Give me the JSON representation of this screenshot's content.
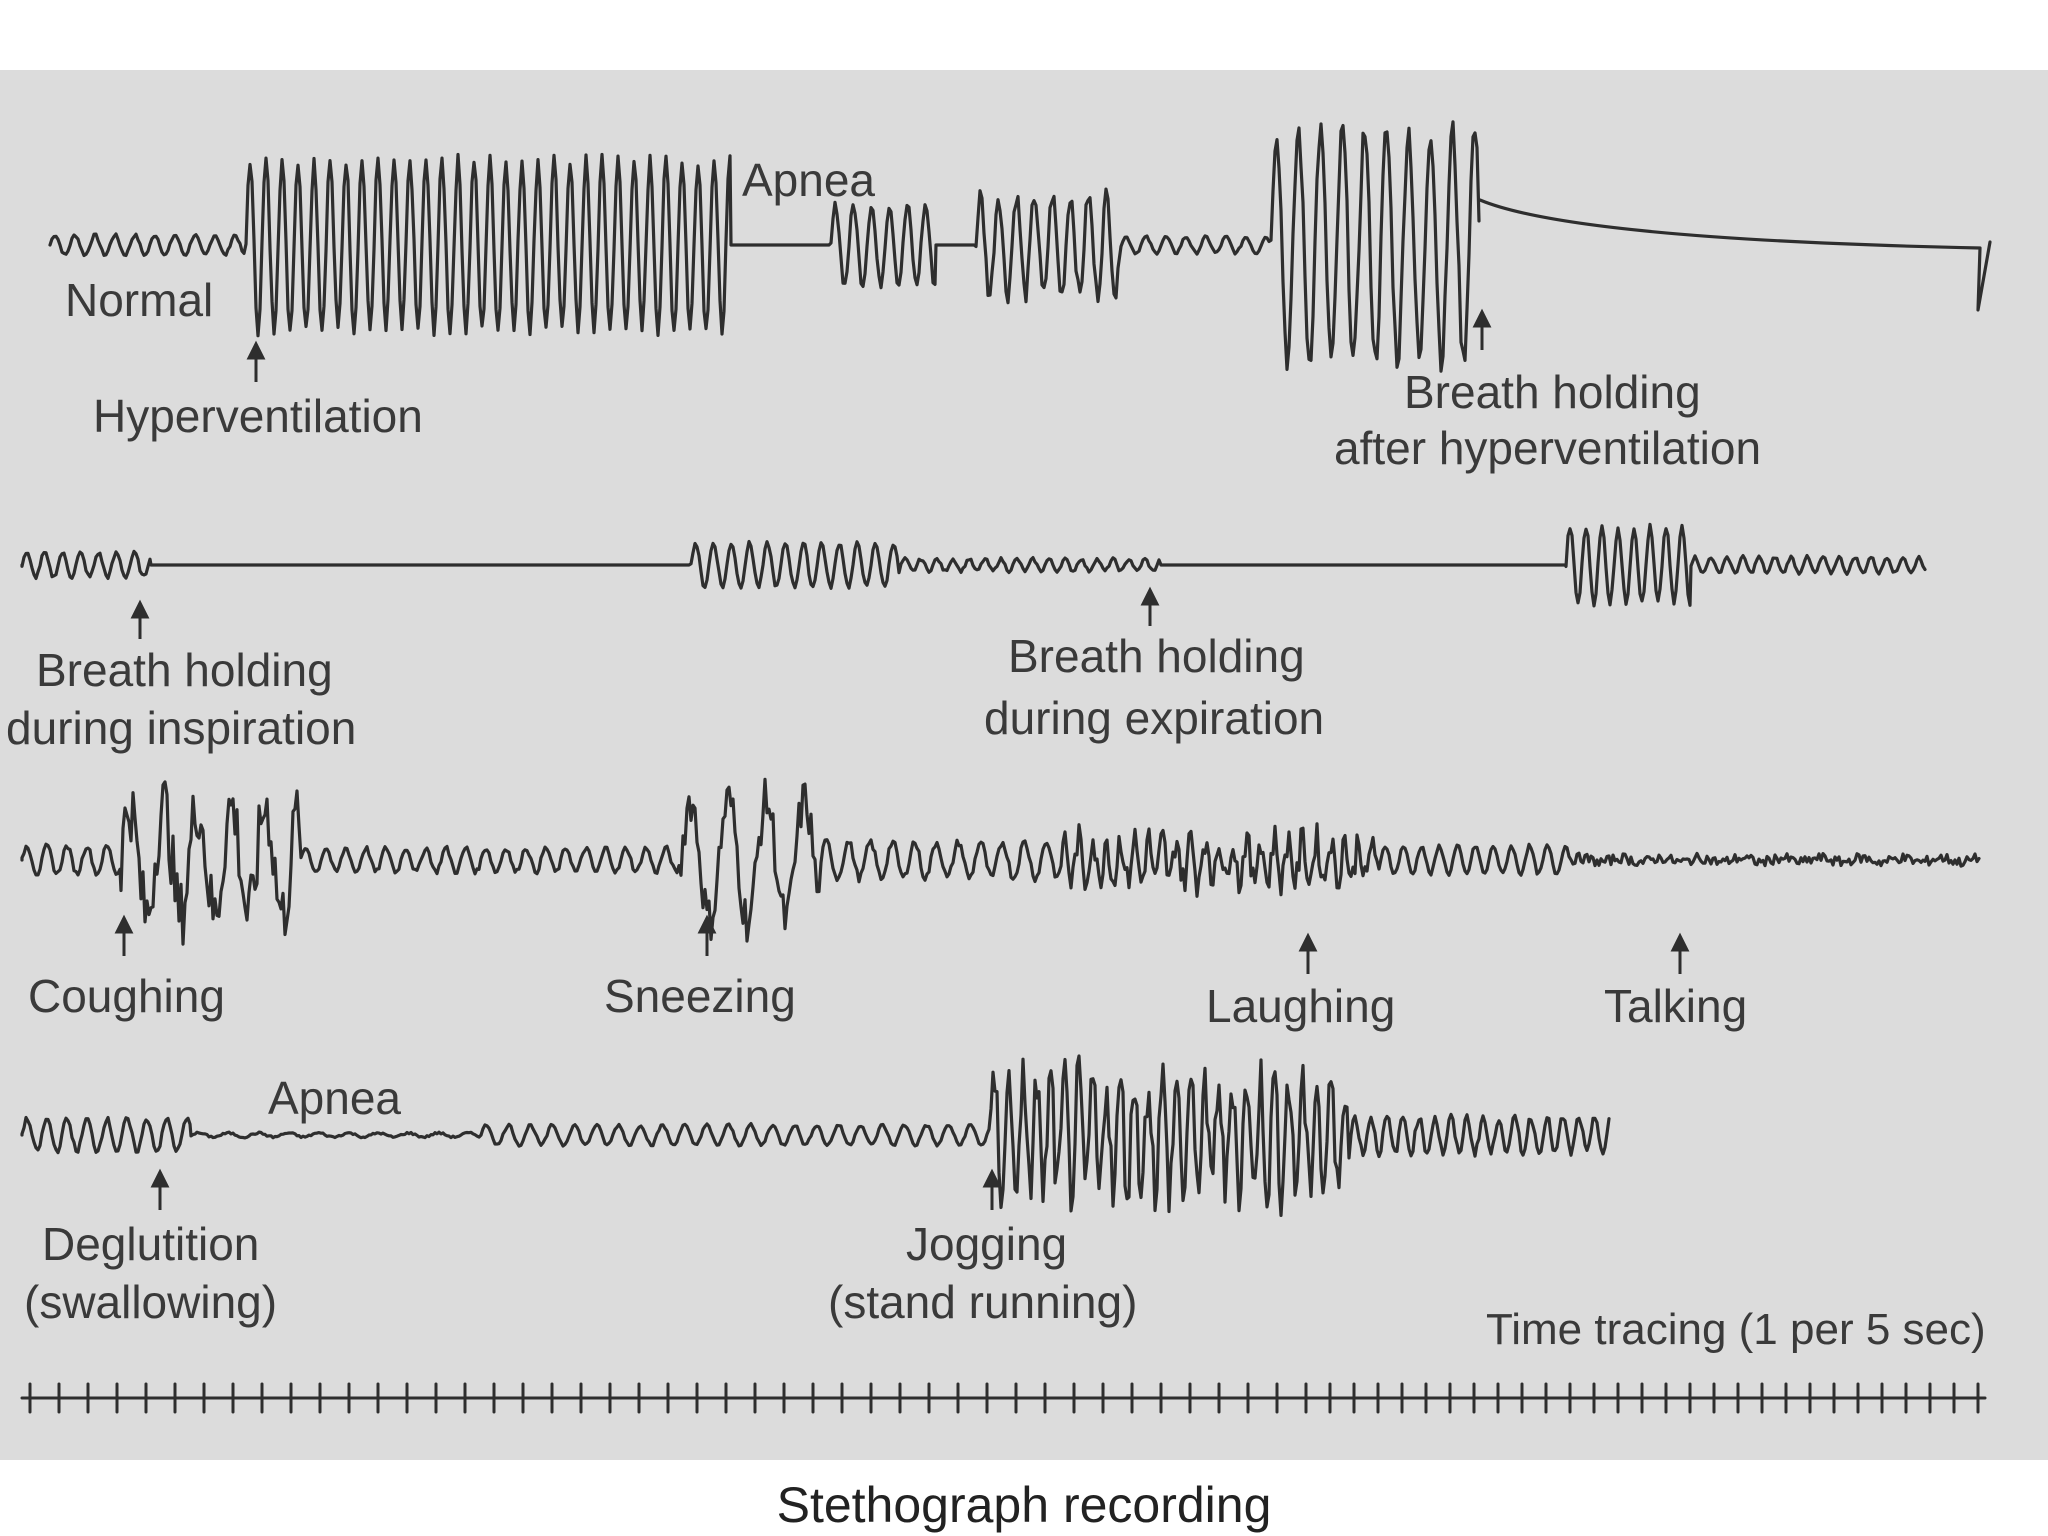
{
  "caption": "Stethograph recording",
  "colors": {
    "trace": "#2e2e2e",
    "panel": "#dcdcdc",
    "text": "#3a3a3a"
  },
  "labels": {
    "normal": "Normal",
    "hyperventilation": "Hyperventilation",
    "apnea_1": "Apnea",
    "breath_holding_after": [
      "Breath holding",
      "after hyperventilation"
    ],
    "breath_holding_inspiration": [
      "Breath holding",
      "during inspiration"
    ],
    "breath_holding_expiration": [
      "Breath holding",
      "during expiration"
    ],
    "coughing": "Coughing",
    "sneezing": "Sneezing",
    "laughing": "Laughing",
    "talking": "Talking",
    "apnea_2": "Apnea",
    "deglutition": [
      "Deglutition",
      "(swallowing)"
    ],
    "jogging": [
      "Jogging",
      "(stand running)"
    ],
    "time_tracing": "Time tracing (1 per 5 sec)"
  }
}
